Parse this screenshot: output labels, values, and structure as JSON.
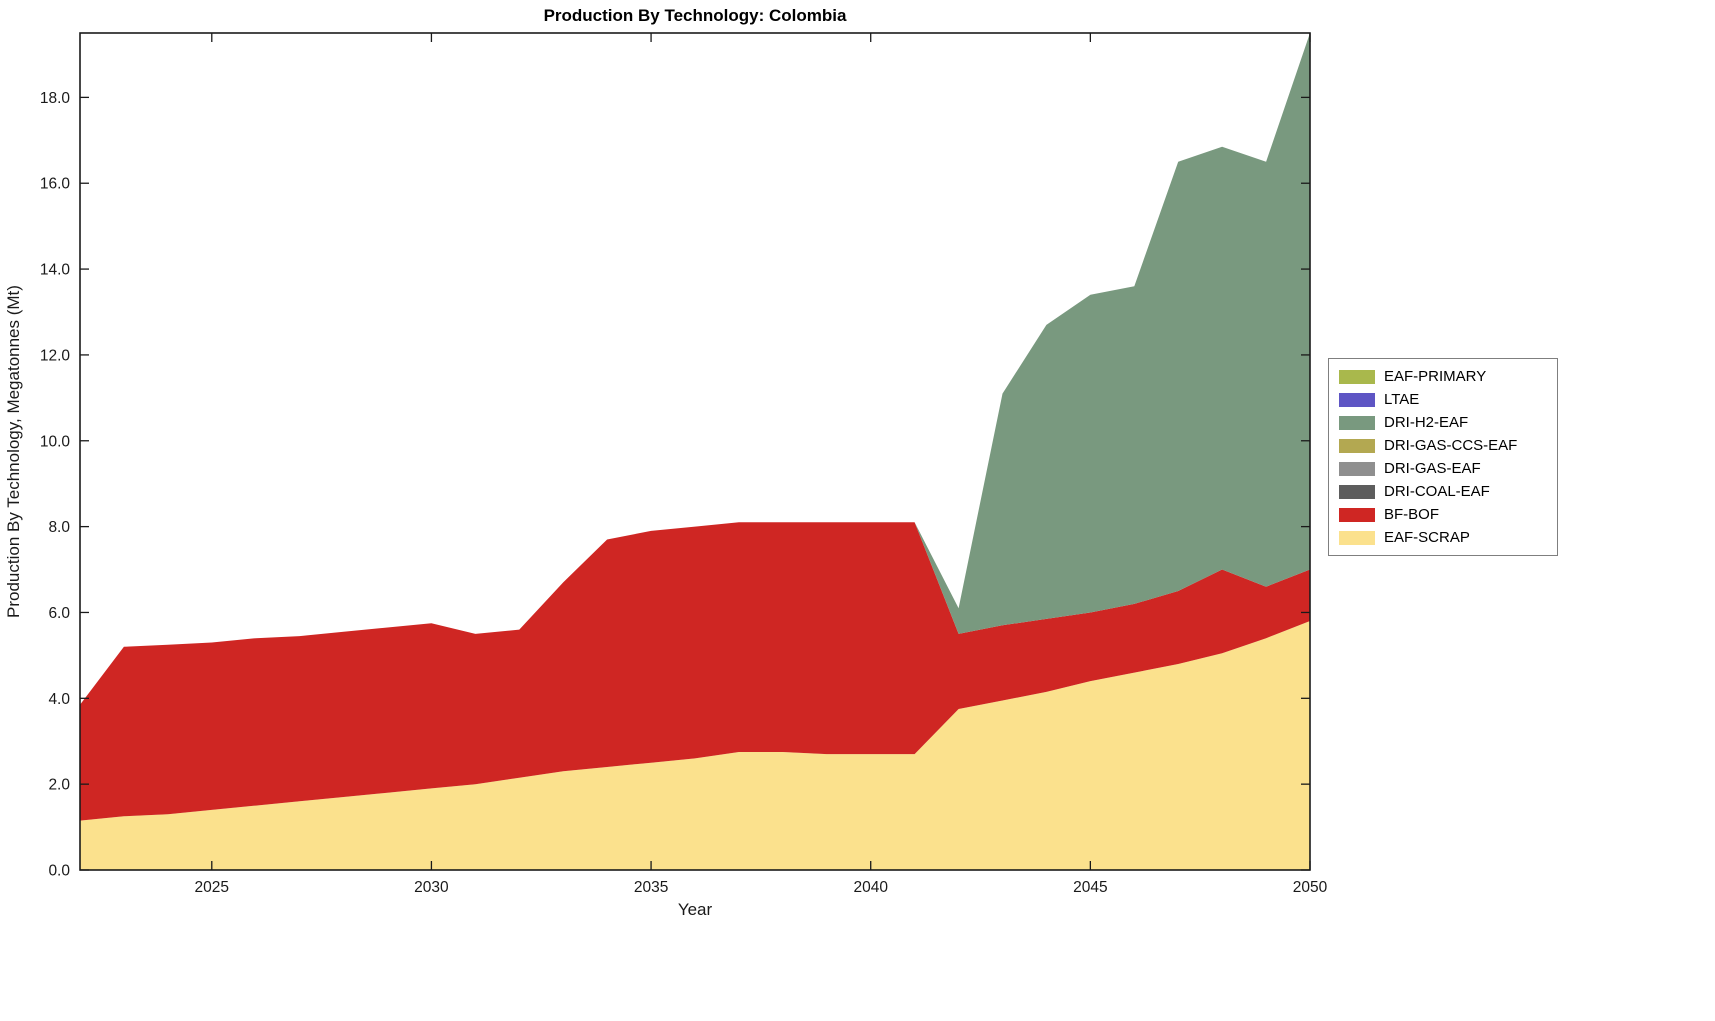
{
  "chart_data": {
    "type": "area",
    "stacked": true,
    "title": "Production By Technology: Colombia",
    "xlabel": "Year",
    "ylabel": "Production By Technology, Megatonnes (Mt)",
    "xlim": [
      2022,
      2050
    ],
    "ylim": [
      0,
      19.5
    ],
    "xticks": [
      2025,
      2030,
      2035,
      2040,
      2045,
      2050
    ],
    "xtick_labels": [
      "2025",
      "2030",
      "2035",
      "2040",
      "2045",
      "2050"
    ],
    "yticks": [
      0,
      2,
      4,
      6,
      8,
      10,
      12,
      14,
      16,
      18
    ],
    "ytick_labels": [
      "0.0",
      "2.0",
      "4.0",
      "6.0",
      "8.0",
      "10.0",
      "12.0",
      "14.0",
      "16.0",
      "18.0"
    ],
    "grid": false,
    "legend_position": "right-outside",
    "axis_color": "#1a1a1a",
    "x": [
      2022,
      2023,
      2024,
      2025,
      2026,
      2027,
      2028,
      2029,
      2030,
      2031,
      2032,
      2033,
      2034,
      2035,
      2036,
      2037,
      2038,
      2039,
      2040,
      2041,
      2042,
      2043,
      2044,
      2045,
      2046,
      2047,
      2048,
      2049,
      2050
    ],
    "series": [
      {
        "name": "EAF-SCRAP",
        "color": "#fbe18d",
        "values": [
          1.15,
          1.25,
          1.3,
          1.4,
          1.5,
          1.6,
          1.7,
          1.8,
          1.9,
          2.0,
          2.15,
          2.3,
          2.4,
          2.5,
          2.6,
          2.75,
          2.75,
          2.7,
          2.7,
          2.7,
          3.75,
          3.95,
          4.15,
          4.4,
          4.6,
          4.8,
          5.05,
          5.4,
          5.8
        ]
      },
      {
        "name": "BF-BOF",
        "color": "#cf2623",
        "values": [
          2.7,
          3.95,
          3.95,
          3.9,
          3.9,
          3.85,
          3.85,
          3.85,
          3.85,
          3.5,
          3.45,
          4.4,
          5.3,
          5.4,
          5.4,
          5.35,
          5.35,
          5.4,
          5.4,
          5.4,
          1.75,
          1.75,
          1.7,
          1.6,
          1.6,
          1.7,
          1.95,
          1.2,
          1.2
        ]
      },
      {
        "name": "DRI-COAL-EAF",
        "color": "#5d5d5d",
        "values": [
          0,
          0,
          0,
          0,
          0,
          0,
          0,
          0,
          0,
          0,
          0,
          0,
          0,
          0,
          0,
          0,
          0,
          0,
          0,
          0,
          0,
          0,
          0,
          0,
          0,
          0,
          0,
          0,
          0
        ]
      },
      {
        "name": "DRI-GAS-EAF",
        "color": "#8f8f8f",
        "values": [
          0,
          0,
          0,
          0,
          0,
          0,
          0,
          0,
          0,
          0,
          0,
          0,
          0,
          0,
          0,
          0,
          0,
          0,
          0,
          0,
          0,
          0,
          0,
          0,
          0,
          0,
          0,
          0,
          0
        ]
      },
      {
        "name": "DRI-GAS-CCS-EAF",
        "color": "#b3a851",
        "values": [
          0,
          0,
          0,
          0,
          0,
          0,
          0,
          0,
          0,
          0,
          0,
          0,
          0,
          0,
          0,
          0,
          0,
          0,
          0,
          0,
          0,
          0,
          0,
          0,
          0,
          0,
          0,
          0,
          0
        ]
      },
      {
        "name": "DRI-H2-EAF",
        "color": "#79997f",
        "values": [
          0,
          0,
          0,
          0,
          0,
          0,
          0,
          0,
          0,
          0,
          0,
          0,
          0,
          0,
          0,
          0,
          0,
          0,
          0,
          0,
          0.6,
          5.4,
          6.85,
          7.4,
          7.4,
          10.0,
          9.85,
          9.9,
          12.5
        ]
      },
      {
        "name": "LTAE",
        "color": "#5e55c4",
        "values": [
          0,
          0,
          0,
          0,
          0,
          0,
          0,
          0,
          0,
          0,
          0,
          0,
          0,
          0,
          0,
          0,
          0,
          0,
          0,
          0,
          0,
          0,
          0,
          0,
          0,
          0,
          0,
          0,
          0
        ]
      },
      {
        "name": "EAF-PRIMARY",
        "color": "#a9b84c",
        "values": [
          0,
          0,
          0,
          0,
          0,
          0,
          0,
          0,
          0,
          0,
          0,
          0,
          0,
          0,
          0,
          0,
          0,
          0,
          0,
          0,
          0,
          0,
          0,
          0,
          0,
          0,
          0,
          0,
          0
        ]
      }
    ]
  }
}
